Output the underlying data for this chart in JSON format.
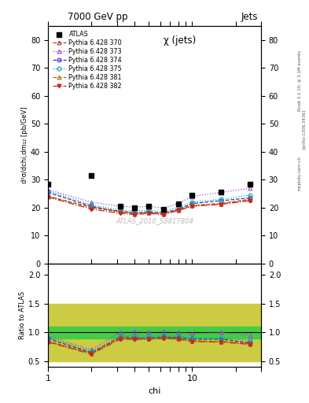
{
  "title_top": "7000 GeV pp",
  "title_right": "Jets",
  "plot_title": "χ (jets)",
  "ylabel_main": "d²σ/dchi,dm₁₂ [pb/GeV]",
  "ylabel_ratio": "Ratio to ATLAS",
  "xlabel": "chi",
  "watermark": "ATLAS_2010_S8817804",
  "rivet_label": "Rivet 3.1.10; ≥ 3.1M events",
  "arxiv_label": "[arXiv:1306.3436]",
  "mcplots_label": "mcplots.cern.ch",
  "chi_values": [
    1.0,
    1.5,
    2.0,
    2.5,
    3.16,
    4.0,
    5.0,
    6.3,
    8.0,
    10.0,
    12.6,
    15.9,
    20.0,
    25.1
  ],
  "atlas_data": [
    28.5,
    null,
    31.5,
    null,
    20.5,
    20.0,
    20.5,
    19.5,
    21.5,
    24.5,
    null,
    25.5,
    null,
    28.5
  ],
  "series": [
    {
      "label": "Pythia 6.428 370",
      "color": "#cc3333",
      "marker": "^",
      "linestyle": "--",
      "mfc": "none",
      "data": [
        24.0,
        null,
        20.2,
        null,
        18.8,
        18.2,
        18.2,
        18.0,
        19.2,
        20.8,
        null,
        21.5,
        null,
        23.0
      ]
    },
    {
      "label": "Pythia 6.428 373",
      "color": "#aa44cc",
      "marker": "^",
      "linestyle": ":",
      "mfc": "none",
      "data": [
        26.5,
        null,
        22.0,
        null,
        20.5,
        20.2,
        20.5,
        19.8,
        21.5,
        24.0,
        null,
        25.5,
        null,
        27.0
      ]
    },
    {
      "label": "Pythia 6.428 374",
      "color": "#3333cc",
      "marker": "o",
      "linestyle": ":",
      "mfc": "none",
      "data": [
        25.5,
        null,
        20.5,
        null,
        18.5,
        18.0,
        18.5,
        18.0,
        19.5,
        21.5,
        null,
        22.5,
        null,
        23.5
      ]
    },
    {
      "label": "Pythia 6.428 375",
      "color": "#00aaaa",
      "marker": "o",
      "linestyle": ":",
      "mfc": "none",
      "data": [
        26.0,
        null,
        21.0,
        null,
        19.2,
        18.8,
        19.0,
        18.5,
        20.2,
        22.0,
        null,
        23.0,
        null,
        24.5
      ]
    },
    {
      "label": "Pythia 6.428 381",
      "color": "#aa7700",
      "marker": "^",
      "linestyle": "--",
      "mfc": "none",
      "data": [
        24.2,
        null,
        20.0,
        null,
        18.5,
        17.8,
        18.2,
        17.8,
        19.2,
        20.8,
        null,
        21.5,
        null,
        22.8
      ]
    },
    {
      "label": "Pythia 6.428 382",
      "color": "#cc2222",
      "marker": "v",
      "linestyle": "-.",
      "mfc": "#cc2222",
      "data": [
        23.8,
        null,
        19.5,
        null,
        18.0,
        17.5,
        18.0,
        17.5,
        19.0,
        20.5,
        null,
        21.2,
        null,
        22.5
      ]
    }
  ],
  "ratio_series": [
    [
      0.84,
      null,
      0.64,
      null,
      0.92,
      0.91,
      0.89,
      0.92,
      0.89,
      0.85,
      null,
      0.84,
      null,
      0.81
    ],
    [
      0.93,
      null,
      0.7,
      null,
      1.0,
      1.01,
      1.0,
      1.02,
      1.0,
      0.98,
      null,
      1.0,
      null,
      0.95
    ],
    [
      0.89,
      null,
      0.65,
      null,
      0.9,
      0.9,
      0.9,
      0.92,
      0.91,
      0.88,
      null,
      0.88,
      null,
      0.82
    ],
    [
      0.91,
      null,
      0.67,
      null,
      0.94,
      0.94,
      0.93,
      0.95,
      0.94,
      0.9,
      null,
      0.9,
      null,
      0.86
    ],
    [
      0.85,
      null,
      0.63,
      null,
      0.9,
      0.89,
      0.89,
      0.91,
      0.89,
      0.85,
      null,
      0.84,
      null,
      0.8
    ],
    [
      0.83,
      null,
      0.62,
      null,
      0.88,
      0.88,
      0.88,
      0.9,
      0.88,
      0.84,
      null,
      0.83,
      null,
      0.79
    ]
  ],
  "ylim_main": [
    0,
    85
  ],
  "ylim_ratio": [
    0.4,
    2.2
  ],
  "yticks_main": [
    0,
    10,
    20,
    30,
    40,
    50,
    60,
    70,
    80
  ],
  "yticks_ratio": [
    0.5,
    1.0,
    1.5,
    2.0
  ],
  "xlim": [
    1.0,
    30.0
  ],
  "inner_band_lo": 0.9,
  "inner_band_hi": 1.1,
  "outer_band_lo": 0.5,
  "outer_band_hi": 1.5,
  "inner_band_color": "#44cc44",
  "outer_band_color": "#cccc44"
}
